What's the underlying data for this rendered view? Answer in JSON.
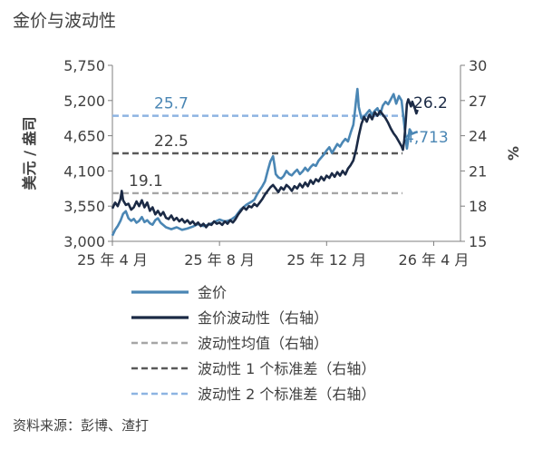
{
  "title": "金价与波动性",
  "source": "资料来源：彭博、渣打",
  "colors": {
    "gold": "#4a86b4",
    "vol": "#1b2a45",
    "mean": "#a6a6a6",
    "sd1": "#595959",
    "sd2": "#8db4e2",
    "axis": "#7f7f7f"
  },
  "chart_data": {
    "type": "line",
    "y_left": {
      "label": "美元 / 盎司",
      "range": [
        3000,
        5750
      ],
      "ticks": [
        "3,000",
        "3,550",
        "4,100",
        "4,650",
        "5,200",
        "5,750"
      ]
    },
    "y_right": {
      "label": "%",
      "range": [
        15,
        30
      ],
      "ticks": [
        "15",
        "18",
        "21",
        "24",
        "27",
        "30"
      ]
    },
    "x_ticks": [
      "25 年 4 月",
      "25 年 8 月",
      "25 年 12 月",
      "26 年 4 月"
    ],
    "x_tick_months": [
      0,
      4,
      8,
      12
    ],
    "x_range_months": [
      0,
      13
    ],
    "series": [
      {
        "name": "金价",
        "axis": "left",
        "color": "#4a86b4",
        "end_label": "4,713",
        "points": [
          [
            0.0,
            3090
          ],
          [
            0.1,
            3180
          ],
          [
            0.2,
            3240
          ],
          [
            0.3,
            3320
          ],
          [
            0.4,
            3430
          ],
          [
            0.5,
            3470
          ],
          [
            0.6,
            3360
          ],
          [
            0.7,
            3320
          ],
          [
            0.8,
            3350
          ],
          [
            0.9,
            3290
          ],
          [
            1.0,
            3320
          ],
          [
            1.1,
            3380
          ],
          [
            1.2,
            3300
          ],
          [
            1.3,
            3330
          ],
          [
            1.4,
            3280
          ],
          [
            1.5,
            3260
          ],
          [
            1.6,
            3330
          ],
          [
            1.7,
            3360
          ],
          [
            1.8,
            3290
          ],
          [
            2.0,
            3220
          ],
          [
            2.2,
            3190
          ],
          [
            2.4,
            3220
          ],
          [
            2.6,
            3180
          ],
          [
            2.8,
            3200
          ],
          [
            3.0,
            3230
          ],
          [
            3.2,
            3270
          ],
          [
            3.4,
            3240
          ],
          [
            3.6,
            3260
          ],
          [
            3.8,
            3300
          ],
          [
            4.0,
            3340
          ],
          [
            4.2,
            3310
          ],
          [
            4.4,
            3330
          ],
          [
            4.6,
            3390
          ],
          [
            4.8,
            3500
          ],
          [
            5.0,
            3570
          ],
          [
            5.2,
            3620
          ],
          [
            5.3,
            3650
          ],
          [
            5.4,
            3730
          ],
          [
            5.5,
            3800
          ],
          [
            5.6,
            3860
          ],
          [
            5.7,
            3940
          ],
          [
            5.8,
            4100
          ],
          [
            5.9,
            4250
          ],
          [
            6.0,
            4330
          ],
          [
            6.05,
            4200
          ],
          [
            6.1,
            4050
          ],
          [
            6.2,
            4000
          ],
          [
            6.3,
            3980
          ],
          [
            6.4,
            4020
          ],
          [
            6.5,
            4100
          ],
          [
            6.6,
            4050
          ],
          [
            6.7,
            4030
          ],
          [
            6.8,
            4080
          ],
          [
            6.9,
            4120
          ],
          [
            7.0,
            4050
          ],
          [
            7.1,
            4090
          ],
          [
            7.2,
            4150
          ],
          [
            7.3,
            4100
          ],
          [
            7.4,
            4160
          ],
          [
            7.5,
            4200
          ],
          [
            7.6,
            4180
          ],
          [
            7.7,
            4260
          ],
          [
            7.8,
            4310
          ],
          [
            7.9,
            4360
          ],
          [
            8.0,
            4420
          ],
          [
            8.1,
            4470
          ],
          [
            8.2,
            4380
          ],
          [
            8.3,
            4450
          ],
          [
            8.4,
            4520
          ],
          [
            8.5,
            4480
          ],
          [
            8.6,
            4550
          ],
          [
            8.7,
            4600
          ],
          [
            8.8,
            4560
          ],
          [
            8.9,
            4700
          ],
          [
            9.0,
            4820
          ],
          [
            9.05,
            5000
          ],
          [
            9.1,
            5200
          ],
          [
            9.15,
            5380
          ],
          [
            9.2,
            5100
          ],
          [
            9.3,
            4920
          ],
          [
            9.4,
            4950
          ],
          [
            9.5,
            5000
          ],
          [
            9.6,
            5050
          ],
          [
            9.7,
            4980
          ],
          [
            9.8,
            5040
          ],
          [
            9.9,
            5080
          ],
          [
            10.0,
            4980
          ],
          [
            10.1,
            5120
          ],
          [
            10.2,
            5180
          ],
          [
            10.3,
            5140
          ],
          [
            10.4,
            5220
          ],
          [
            10.5,
            5300
          ],
          [
            10.6,
            5150
          ],
          [
            10.7,
            5270
          ],
          [
            10.8,
            5200
          ],
          [
            10.9,
            4820
          ],
          [
            11.0,
            4450
          ],
          [
            11.05,
            4600
          ],
          [
            11.1,
            4750
          ],
          [
            11.2,
            4680
          ],
          [
            11.3,
            4700
          ],
          [
            11.4,
            4713
          ]
        ]
      },
      {
        "name": "金价波动性（右轴）",
        "axis": "right",
        "color": "#1b2a45",
        "end_label": "26.2",
        "points": [
          [
            0.0,
            17.8
          ],
          [
            0.1,
            18.3
          ],
          [
            0.2,
            18.0
          ],
          [
            0.3,
            18.6
          ],
          [
            0.35,
            19.3
          ],
          [
            0.4,
            18.5
          ],
          [
            0.5,
            18.1
          ],
          [
            0.6,
            18.2
          ],
          [
            0.7,
            17.7
          ],
          [
            0.8,
            17.9
          ],
          [
            0.9,
            18.4
          ],
          [
            1.0,
            18.0
          ],
          [
            1.1,
            18.5
          ],
          [
            1.2,
            17.9
          ],
          [
            1.3,
            18.3
          ],
          [
            1.4,
            17.6
          ],
          [
            1.5,
            17.9
          ],
          [
            1.6,
            17.3
          ],
          [
            1.7,
            17.6
          ],
          [
            1.8,
            17.2
          ],
          [
            1.9,
            17.5
          ],
          [
            2.0,
            17.0
          ],
          [
            2.1,
            16.9
          ],
          [
            2.2,
            17.2
          ],
          [
            2.3,
            16.8
          ],
          [
            2.4,
            17.0
          ],
          [
            2.5,
            16.7
          ],
          [
            2.6,
            16.9
          ],
          [
            2.7,
            16.6
          ],
          [
            2.8,
            16.8
          ],
          [
            2.9,
            16.5
          ],
          [
            3.0,
            16.7
          ],
          [
            3.1,
            16.4
          ],
          [
            3.2,
            16.6
          ],
          [
            3.3,
            16.3
          ],
          [
            3.4,
            16.5
          ],
          [
            3.5,
            16.2
          ],
          [
            3.6,
            16.5
          ],
          [
            3.7,
            16.4
          ],
          [
            3.8,
            16.7
          ],
          [
            3.9,
            16.5
          ],
          [
            4.0,
            16.6
          ],
          [
            4.1,
            16.4
          ],
          [
            4.2,
            16.7
          ],
          [
            4.3,
            16.5
          ],
          [
            4.4,
            16.8
          ],
          [
            4.5,
            16.6
          ],
          [
            4.6,
            16.9
          ],
          [
            4.7,
            17.3
          ],
          [
            4.8,
            17.6
          ],
          [
            4.9,
            17.9
          ],
          [
            5.0,
            17.7
          ],
          [
            5.1,
            18.0
          ],
          [
            5.2,
            17.9
          ],
          [
            5.3,
            18.2
          ],
          [
            5.4,
            18.0
          ],
          [
            5.5,
            18.3
          ],
          [
            5.6,
            18.6
          ],
          [
            5.7,
            19.0
          ],
          [
            5.8,
            19.3
          ],
          [
            5.9,
            19.6
          ],
          [
            6.0,
            19.8
          ],
          [
            6.1,
            19.5
          ],
          [
            6.2,
            19.2
          ],
          [
            6.3,
            19.6
          ],
          [
            6.4,
            19.4
          ],
          [
            6.5,
            19.8
          ],
          [
            6.6,
            19.6
          ],
          [
            6.7,
            19.3
          ],
          [
            6.8,
            19.7
          ],
          [
            6.9,
            19.5
          ],
          [
            7.0,
            19.9
          ],
          [
            7.1,
            19.6
          ],
          [
            7.2,
            20.0
          ],
          [
            7.3,
            19.7
          ],
          [
            7.4,
            20.2
          ],
          [
            7.5,
            19.9
          ],
          [
            7.6,
            20.3
          ],
          [
            7.7,
            20.1
          ],
          [
            7.8,
            20.5
          ],
          [
            7.9,
            20.2
          ],
          [
            8.0,
            20.6
          ],
          [
            8.1,
            20.4
          ],
          [
            8.2,
            20.8
          ],
          [
            8.3,
            20.5
          ],
          [
            8.4,
            20.9
          ],
          [
            8.5,
            20.6
          ],
          [
            8.6,
            21.0
          ],
          [
            8.7,
            20.7
          ],
          [
            8.8,
            21.2
          ],
          [
            8.9,
            21.5
          ],
          [
            9.0,
            21.9
          ],
          [
            9.1,
            22.8
          ],
          [
            9.2,
            24.0
          ],
          [
            9.3,
            25.0
          ],
          [
            9.4,
            25.6
          ],
          [
            9.5,
            25.2
          ],
          [
            9.6,
            25.8
          ],
          [
            9.7,
            25.4
          ],
          [
            9.8,
            26.0
          ],
          [
            9.9,
            25.7
          ],
          [
            10.0,
            26.1
          ],
          [
            10.1,
            25.8
          ],
          [
            10.2,
            25.5
          ],
          [
            10.3,
            25.1
          ],
          [
            10.4,
            24.6
          ],
          [
            10.5,
            24.2
          ],
          [
            10.6,
            23.9
          ],
          [
            10.7,
            23.5
          ],
          [
            10.8,
            23.1
          ],
          [
            10.85,
            22.8
          ],
          [
            10.9,
            23.6
          ],
          [
            10.95,
            25.0
          ],
          [
            11.0,
            26.7
          ],
          [
            11.05,
            27.1
          ],
          [
            11.1,
            26.8
          ],
          [
            11.15,
            26.5
          ],
          [
            11.2,
            26.9
          ],
          [
            11.25,
            26.6
          ],
          [
            11.3,
            26.3
          ],
          [
            11.35,
            25.9
          ],
          [
            11.4,
            26.2
          ]
        ]
      }
    ],
    "ref_lines": [
      {
        "name": "波动性均值（右轴）",
        "value": 19.1,
        "label": "19.1",
        "color": "#a6a6a6"
      },
      {
        "name": "波动性 1 个标准差（右轴）",
        "value": 22.5,
        "label": "22.5",
        "color": "#595959"
      },
      {
        "name": "波动性 2 个标准差（右轴）",
        "value": 25.7,
        "label": "25.7",
        "color": "#8db4e2"
      }
    ],
    "legend": [
      {
        "label": "金价",
        "style": "solid",
        "color": "#4a86b4"
      },
      {
        "label": "金价波动性（右轴）",
        "style": "solid",
        "color": "#1b2a45"
      },
      {
        "label": "波动性均值（右轴）",
        "style": "dashed",
        "color": "#a6a6a6"
      },
      {
        "label": "波动性 1 个标准差（右轴）",
        "style": "dashed",
        "color": "#595959"
      },
      {
        "label": "波动性 2 个标准差（右轴）",
        "style": "dashed",
        "color": "#8db4e2"
      }
    ],
    "legend_position": "bottom",
    "grid": false
  }
}
